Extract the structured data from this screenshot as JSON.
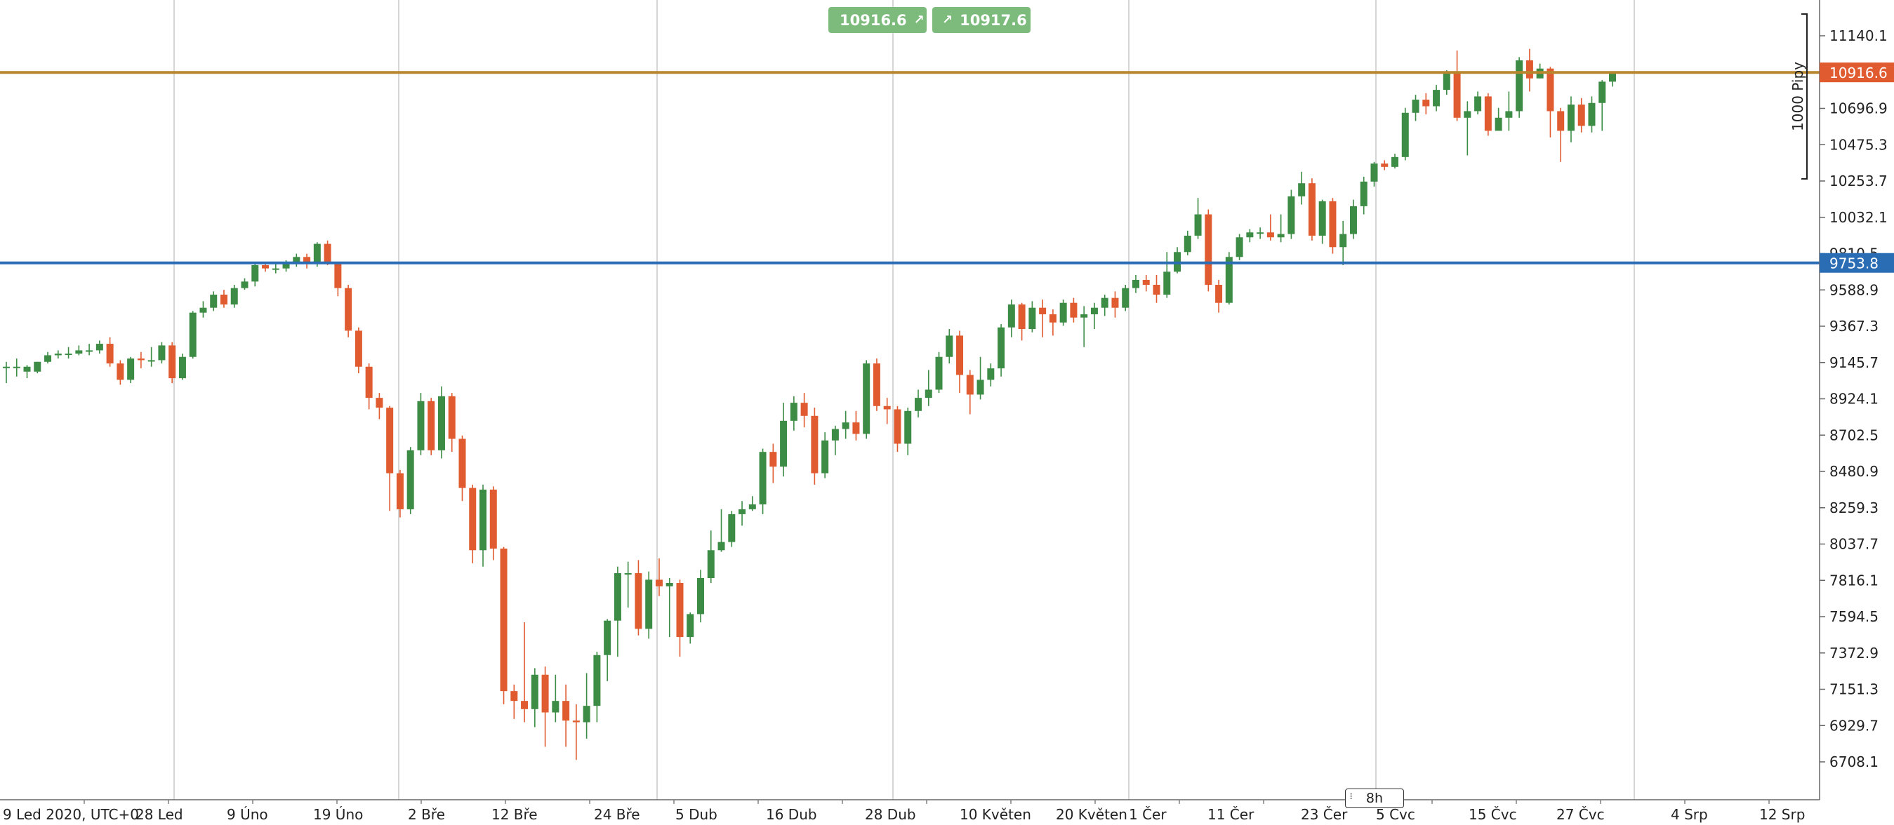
{
  "toolbar": {
    "sell_price": "10916.6",
    "buy_price": "10917.6",
    "sell_icon": "arrow-up-right-icon",
    "buy_icon": "arrow-up-right-icon"
  },
  "timeframe": {
    "label": "8h"
  },
  "chart_data": {
    "type": "candlestick",
    "ylim": [
      6600,
      11300
    ],
    "y_ticks": [
      "11140.1",
      "10916.6",
      "10696.9",
      "10475.3",
      "10253.7",
      "10032.1",
      "9810.5",
      "9588.9",
      "9367.3",
      "9145.7",
      "8924.1",
      "8702.5",
      "8480.9",
      "8259.3",
      "8037.7",
      "7816.1",
      "7594.5",
      "7372.9",
      "7151.3",
      "6929.7",
      "6708.1"
    ],
    "x_ticks": [
      "9 Led 2020, UTC+0",
      "28 Led",
      "9 Úno",
      "19 Úno",
      "2 Bře",
      "12 Bře",
      "24 Bře",
      "5 Dub",
      "16 Dub",
      "28 Dub",
      "10 Květen",
      "20 Květen",
      "1 Čer",
      "11 Čer",
      "23 Čer",
      "5 Čvc",
      "15 Čvc",
      "27 Čvc",
      "4 Srp",
      "12 Srp"
    ],
    "current_price": {
      "value": 10916.6,
      "label": "10916.6",
      "color": "#e05c30",
      "line_color": "#b8862c"
    },
    "level_line": {
      "value": 9753.8,
      "label": "9753.8",
      "color": "#2a6db5"
    },
    "range_bracket": {
      "label": "1000 Pipy",
      "from": 10280,
      "to": 11280
    },
    "colors": {
      "up": "#3d8c45",
      "down": "#e05c30",
      "grid": "#c8c8c8"
    },
    "candles": [
      [
        9120,
        9120,
        9150,
        9020
      ],
      [
        9120,
        9120,
        9170,
        9060
      ],
      [
        9090,
        9120,
        9130,
        9050
      ],
      [
        9090,
        9150,
        9150,
        9080
      ],
      [
        9150,
        9190,
        9210,
        9140
      ],
      [
        9190,
        9200,
        9220,
        9170
      ],
      [
        9200,
        9200,
        9240,
        9170
      ],
      [
        9200,
        9220,
        9250,
        9190
      ],
      [
        9220,
        9220,
        9260,
        9190
      ],
      [
        9220,
        9260,
        9280,
        9200
      ],
      [
        9260,
        9140,
        9300,
        9120
      ],
      [
        9140,
        9040,
        9160,
        9010
      ],
      [
        9040,
        9170,
        9180,
        9020
      ],
      [
        9170,
        9160,
        9210,
        9110
      ],
      [
        9160,
        9160,
        9240,
        9120
      ],
      [
        9160,
        9250,
        9270,
        9140
      ],
      [
        9250,
        9050,
        9270,
        9020
      ],
      [
        9050,
        9180,
        9200,
        9040
      ],
      [
        9180,
        9450,
        9460,
        9170
      ],
      [
        9450,
        9480,
        9520,
        9420
      ],
      [
        9480,
        9560,
        9580,
        9460
      ],
      [
        9560,
        9500,
        9590,
        9480
      ],
      [
        9500,
        9600,
        9620,
        9480
      ],
      [
        9600,
        9640,
        9660,
        9590
      ],
      [
        9640,
        9740,
        9760,
        9610
      ],
      [
        9740,
        9720,
        9760,
        9700
      ],
      [
        9720,
        9720,
        9760,
        9690
      ],
      [
        9720,
        9750,
        9770,
        9700
      ],
      [
        9750,
        9790,
        9810,
        9730
      ],
      [
        9790,
        9750,
        9810,
        9720
      ],
      [
        9750,
        9870,
        9880,
        9730
      ],
      [
        9870,
        9760,
        9890,
        9740
      ],
      [
        9760,
        9600,
        9760,
        9550
      ],
      [
        9600,
        9340,
        9620,
        9300
      ],
      [
        9340,
        9120,
        9360,
        9080
      ],
      [
        9120,
        8930,
        9140,
        8860
      ],
      [
        8930,
        8870,
        8960,
        8800
      ],
      [
        8870,
        8470,
        8880,
        8240
      ],
      [
        8470,
        8250,
        8490,
        8200
      ],
      [
        8250,
        8610,
        8630,
        8220
      ],
      [
        8610,
        8910,
        8960,
        8580
      ],
      [
        8910,
        8610,
        8930,
        8580
      ],
      [
        8610,
        8940,
        9000,
        8560
      ],
      [
        8940,
        8680,
        8960,
        8600
      ],
      [
        8680,
        8380,
        8700,
        8300
      ],
      [
        8380,
        8000,
        8400,
        7920
      ],
      [
        8000,
        8370,
        8400,
        7900
      ],
      [
        8370,
        8010,
        8390,
        7940
      ],
      [
        8010,
        7140,
        8020,
        7060
      ],
      [
        7140,
        7080,
        7180,
        6970
      ],
      [
        7080,
        7030,
        7560,
        6950
      ],
      [
        7030,
        7240,
        7280,
        6920
      ],
      [
        7240,
        7010,
        7290,
        6800
      ],
      [
        7010,
        7080,
        7240,
        6950
      ],
      [
        7080,
        6960,
        7180,
        6800
      ],
      [
        6960,
        6950,
        7060,
        6720
      ],
      [
        6950,
        7050,
        7250,
        6850
      ],
      [
        7050,
        7360,
        7380,
        6950
      ],
      [
        7360,
        7570,
        7580,
        7200
      ],
      [
        7570,
        7860,
        7900,
        7350
      ],
      [
        7860,
        7860,
        7930,
        7650
      ],
      [
        7860,
        7520,
        7940,
        7480
      ],
      [
        7520,
        7820,
        7870,
        7460
      ],
      [
        7820,
        7780,
        7950,
        7720
      ],
      [
        7780,
        7800,
        7830,
        7470
      ],
      [
        7800,
        7470,
        7820,
        7350
      ],
      [
        7470,
        7610,
        7620,
        7430
      ],
      [
        7610,
        7830,
        7880,
        7560
      ],
      [
        7830,
        8000,
        8120,
        7800
      ],
      [
        8000,
        8050,
        8250,
        7990
      ],
      [
        8050,
        8220,
        8240,
        8020
      ],
      [
        8220,
        8250,
        8300,
        8150
      ],
      [
        8250,
        8280,
        8330,
        8240
      ],
      [
        8280,
        8600,
        8620,
        8220
      ],
      [
        8600,
        8510,
        8650,
        8410
      ],
      [
        8510,
        8790,
        8900,
        8450
      ],
      [
        8790,
        8900,
        8940,
        8730
      ],
      [
        8900,
        8820,
        8960,
        8750
      ],
      [
        8820,
        8470,
        8870,
        8400
      ],
      [
        8470,
        8670,
        8720,
        8440
      ],
      [
        8670,
        8740,
        8760,
        8580
      ],
      [
        8740,
        8780,
        8850,
        8680
      ],
      [
        8780,
        8710,
        8850,
        8670
      ],
      [
        8710,
        9140,
        9160,
        8680
      ],
      [
        9140,
        8880,
        9170,
        8850
      ],
      [
        8880,
        8860,
        8930,
        8770
      ],
      [
        8860,
        8650,
        8880,
        8600
      ],
      [
        8650,
        8850,
        8870,
        8580
      ],
      [
        8850,
        8930,
        8980,
        8810
      ],
      [
        8930,
        8980,
        9100,
        8880
      ],
      [
        8980,
        9180,
        9210,
        8960
      ],
      [
        9180,
        9310,
        9350,
        9140
      ],
      [
        9310,
        9070,
        9340,
        8960
      ],
      [
        9070,
        8950,
        9100,
        8830
      ],
      [
        8950,
        9040,
        9180,
        8920
      ],
      [
        9040,
        9110,
        9140,
        9000
      ],
      [
        9110,
        9360,
        9380,
        9060
      ],
      [
        9360,
        9500,
        9530,
        9300
      ],
      [
        9500,
        9350,
        9510,
        9280
      ],
      [
        9350,
        9480,
        9520,
        9330
      ],
      [
        9480,
        9440,
        9530,
        9300
      ],
      [
        9440,
        9390,
        9470,
        9310
      ],
      [
        9390,
        9510,
        9530,
        9370
      ],
      [
        9510,
        9420,
        9540,
        9390
      ],
      [
        9420,
        9440,
        9490,
        9240
      ],
      [
        9440,
        9480,
        9510,
        9350
      ],
      [
        9480,
        9540,
        9560,
        9430
      ],
      [
        9540,
        9480,
        9580,
        9420
      ],
      [
        9480,
        9600,
        9620,
        9460
      ],
      [
        9600,
        9650,
        9680,
        9570
      ],
      [
        9650,
        9620,
        9680,
        9580
      ],
      [
        9620,
        9560,
        9680,
        9510
      ],
      [
        9560,
        9700,
        9820,
        9540
      ],
      [
        9700,
        9820,
        9850,
        9690
      ],
      [
        9820,
        9920,
        9950,
        9800
      ],
      [
        9920,
        10050,
        10150,
        9900
      ],
      [
        10050,
        9620,
        10080,
        9580
      ],
      [
        9620,
        9510,
        9650,
        9450
      ],
      [
        9510,
        9790,
        9820,
        9500
      ],
      [
        9790,
        9910,
        9930,
        9770
      ],
      [
        9910,
        9940,
        9960,
        9880
      ],
      [
        9940,
        9940,
        9970,
        9900
      ],
      [
        9940,
        9910,
        10050,
        9890
      ],
      [
        9910,
        9930,
        10050,
        9880
      ],
      [
        9930,
        10160,
        10200,
        9900
      ],
      [
        10160,
        10240,
        10310,
        10110
      ],
      [
        10240,
        9920,
        10270,
        9890
      ],
      [
        9920,
        10130,
        10140,
        9870
      ],
      [
        10130,
        9850,
        10150,
        9810
      ],
      [
        9850,
        9930,
        10010,
        9740
      ],
      [
        9930,
        10100,
        10140,
        9900
      ],
      [
        10100,
        10250,
        10280,
        10050
      ],
      [
        10250,
        10360,
        10370,
        10220
      ],
      [
        10360,
        10340,
        10380,
        10320
      ],
      [
        10340,
        10400,
        10420,
        10330
      ],
      [
        10400,
        10670,
        10700,
        10380
      ],
      [
        10670,
        10750,
        10780,
        10620
      ],
      [
        10750,
        10710,
        10790,
        10660
      ],
      [
        10710,
        10810,
        10840,
        10680
      ],
      [
        10810,
        10910,
        10930,
        10780
      ],
      [
        10910,
        10640,
        11050,
        10620
      ],
      [
        10640,
        10680,
        10740,
        10410
      ],
      [
        10680,
        10770,
        10800,
        10660
      ],
      [
        10770,
        10560,
        10790,
        10530
      ],
      [
        10560,
        10640,
        10700,
        10580
      ],
      [
        10640,
        10680,
        10800,
        10560
      ],
      [
        10680,
        10990,
        11010,
        10640
      ],
      [
        10990,
        10880,
        11060,
        10800
      ],
      [
        10880,
        10940,
        10970,
        10880
      ],
      [
        10940,
        10680,
        10950,
        10520
      ],
      [
        10680,
        10560,
        10700,
        10370
      ],
      [
        10560,
        10720,
        10770,
        10490
      ],
      [
        10720,
        10590,
        10760,
        10550
      ],
      [
        10590,
        10730,
        10770,
        10550
      ],
      [
        10730,
        10860,
        10870,
        10560
      ],
      [
        10860,
        10917,
        10920,
        10830
      ]
    ]
  }
}
